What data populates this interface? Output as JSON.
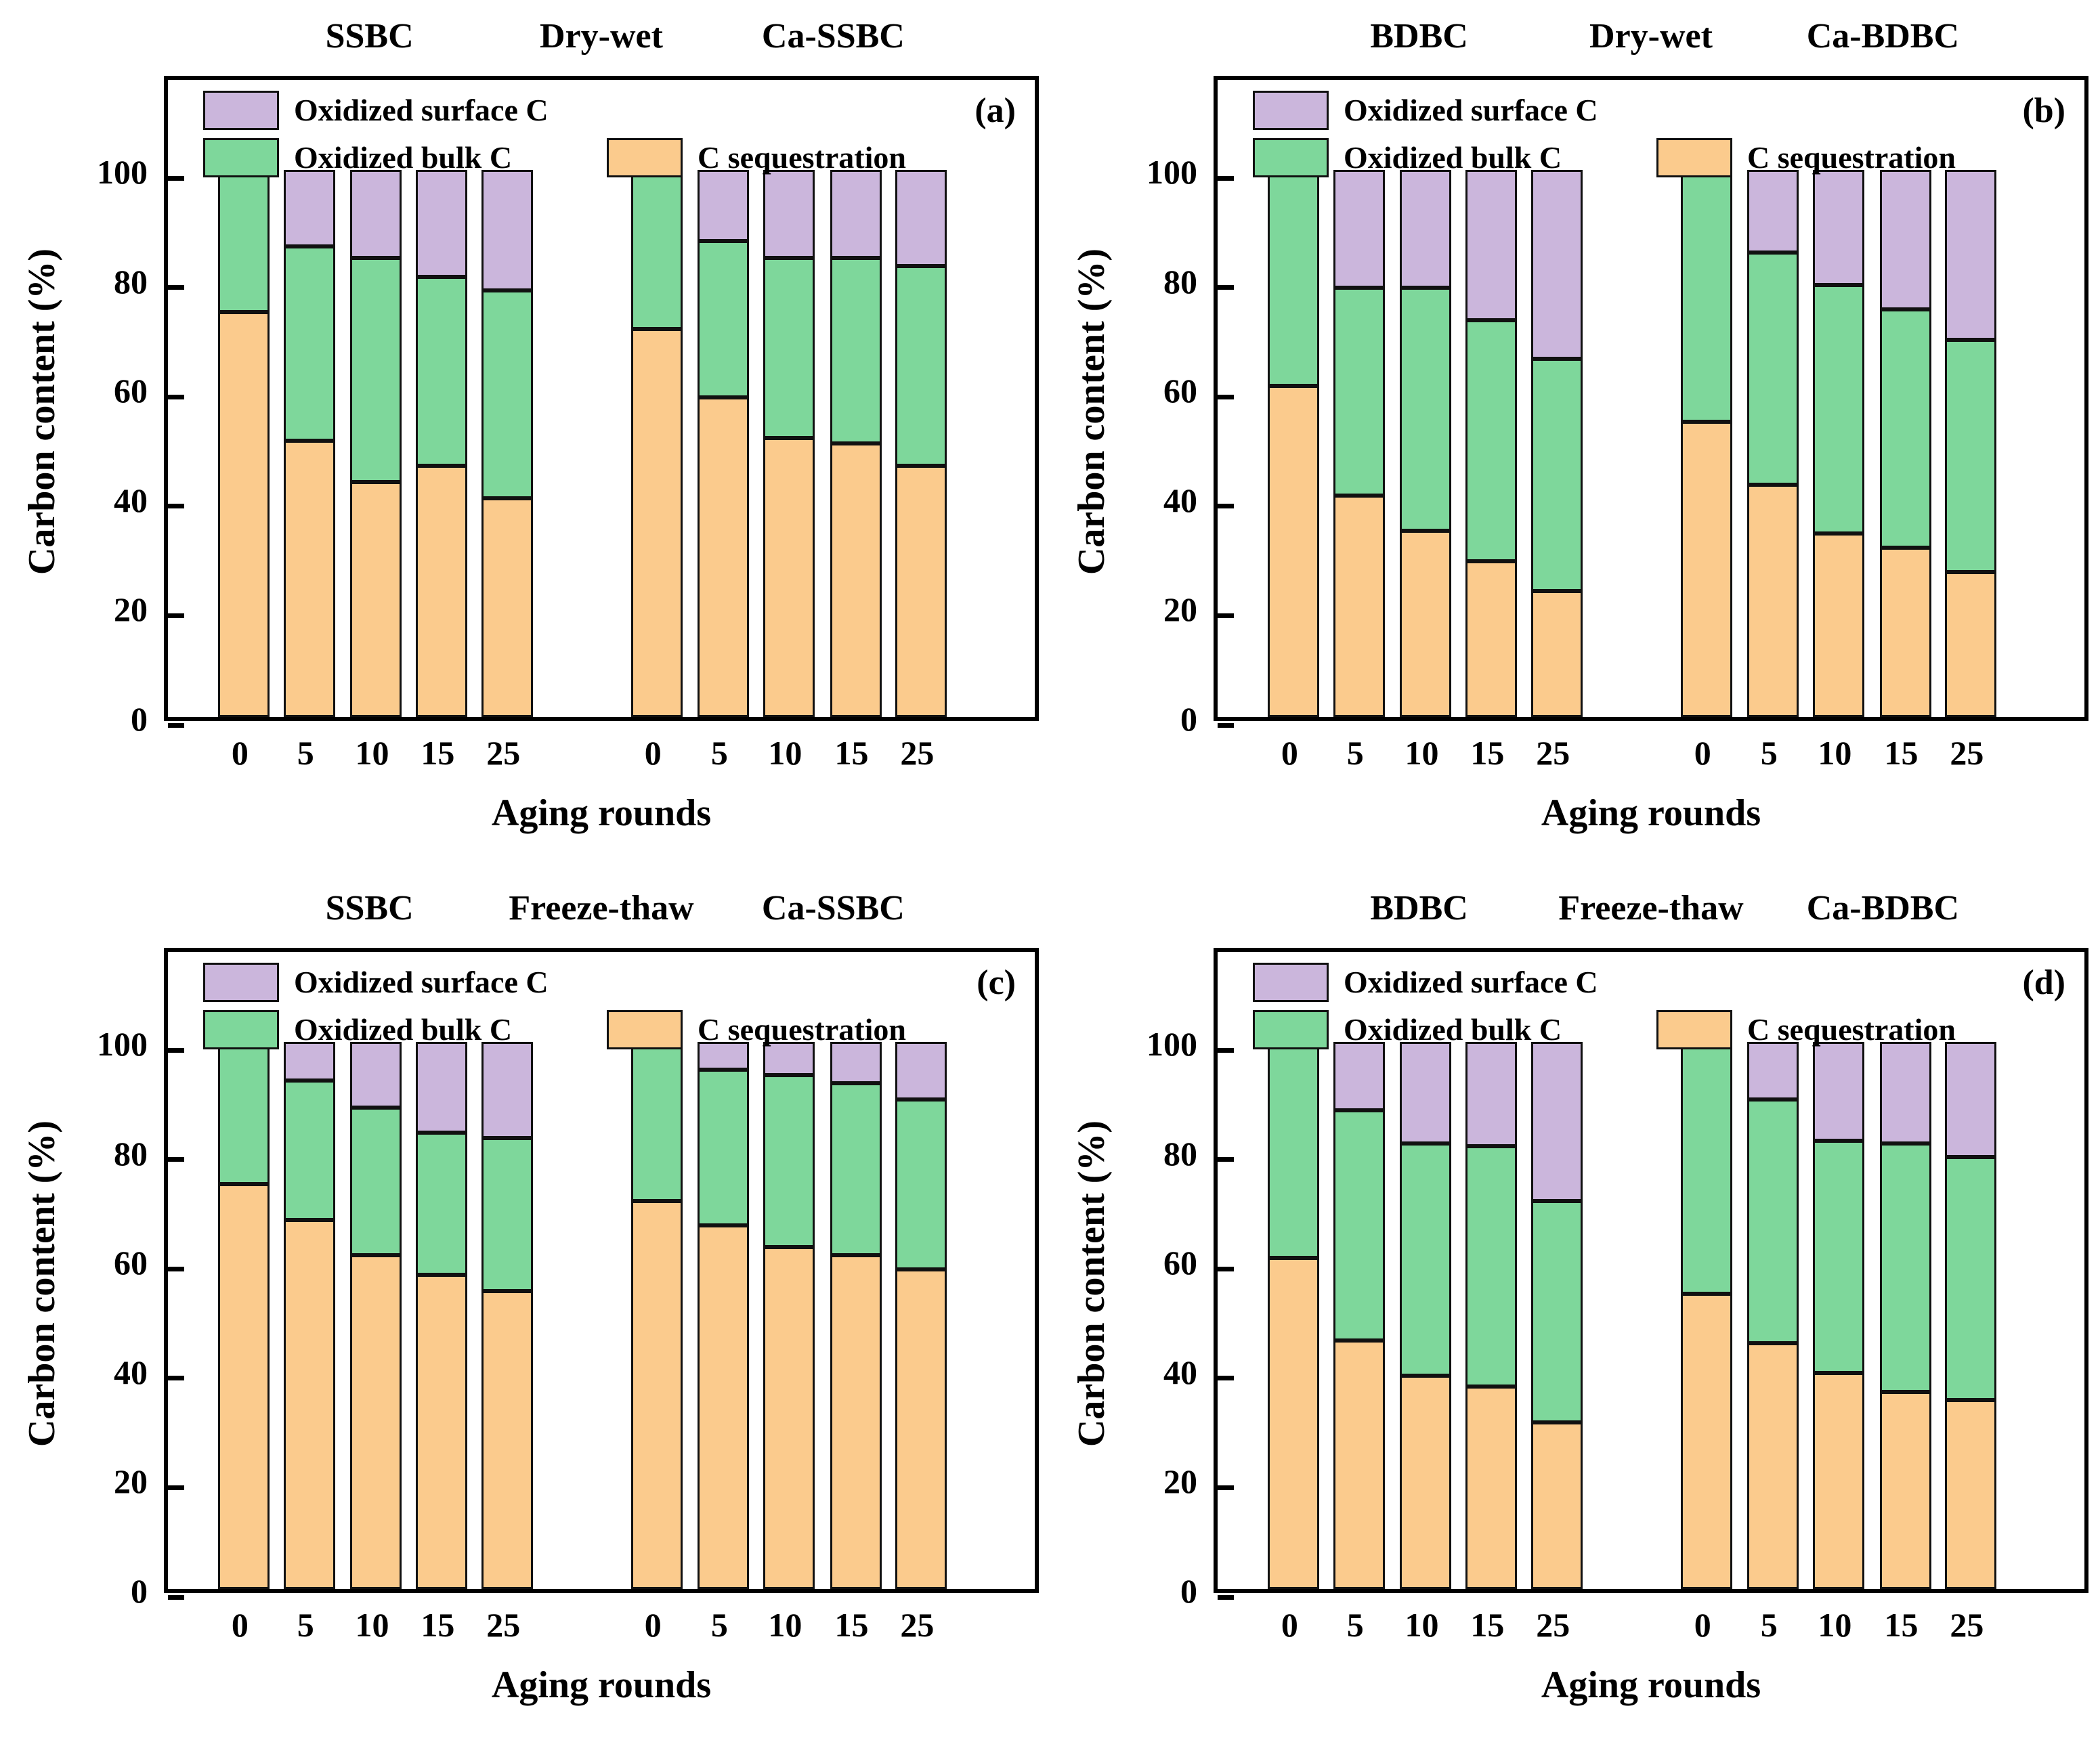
{
  "figure": {
    "ylabel": "Carbon content (%)",
    "xlabel": "Aging rounds",
    "y_tick_labels": [
      "0",
      "20",
      "40",
      "60",
      "80",
      "100"
    ],
    "x_tick_labels": [
      "0",
      "5",
      "10",
      "15",
      "25"
    ],
    "legend": {
      "oxidized_surface": "Oxidized surface C",
      "oxidized_bulk": "Oxidized bulk C",
      "c_sequestration": "C sequestration"
    },
    "colors": {
      "c_sequestration": "#FBCB8D",
      "oxidized_bulk": "#7ED79B",
      "oxidized_surface": "#CBB6DC",
      "bar_border": "#111111",
      "axis": "#000000"
    }
  },
  "chart_data": [
    {
      "type": "bar",
      "stacked": true,
      "panel_label": "(a)",
      "left_group": "SSBC",
      "aging_type": "Dry-wet",
      "right_group": "Ca-SSBC",
      "xlabel": "Aging rounds",
      "ylabel": "Carbon content (%)",
      "ylim": [
        0,
        100
      ],
      "grid": false,
      "legend_position": "top-left-inside",
      "categories": [
        "0",
        "5",
        "10",
        "15",
        "25"
      ],
      "series_order": [
        "C sequestration",
        "Oxidized bulk C",
        "Oxidized surface C"
      ],
      "groups": [
        {
          "name": "SSBC",
          "c_sequestration": [
            74,
            50.5,
            43,
            46,
            40
          ],
          "oxidized_bulk_c": [
            26,
            35.5,
            41,
            34.5,
            38
          ],
          "oxidized_surface_c": [
            0,
            14,
            16,
            19.5,
            22
          ]
        },
        {
          "name": "Ca-SSBC",
          "c_sequestration": [
            71,
            58.5,
            51,
            50,
            46
          ],
          "oxidized_bulk_c": [
            29,
            28.5,
            33,
            34,
            36.5
          ],
          "oxidized_surface_c": [
            0,
            13,
            16,
            16,
            17.5
          ]
        }
      ]
    },
    {
      "type": "bar",
      "stacked": true,
      "panel_label": "(b)",
      "left_group": "BDBC",
      "aging_type": "Dry-wet",
      "right_group": "Ca-BDBC",
      "xlabel": "Aging rounds",
      "ylabel": "Carbon content (%)",
      "ylim": [
        0,
        100
      ],
      "grid": false,
      "legend_position": "top-left-inside",
      "categories": [
        "0",
        "5",
        "10",
        "15",
        "25"
      ],
      "series_order": [
        "C sequestration",
        "Oxidized bulk C",
        "Oxidized surface C"
      ],
      "groups": [
        {
          "name": "BDBC",
          "c_sequestration": [
            60.5,
            40.5,
            34,
            28.5,
            23
          ],
          "oxidized_bulk_c": [
            39.5,
            38,
            44.5,
            44,
            42.5
          ],
          "oxidized_surface_c": [
            0,
            21.5,
            21.5,
            27.5,
            34.5
          ]
        },
        {
          "name": "Ca-BDBC",
          "c_sequestration": [
            54,
            42.5,
            33.5,
            31,
            26.5
          ],
          "oxidized_bulk_c": [
            46,
            42.5,
            45.5,
            43.5,
            42.5
          ],
          "oxidized_surface_c": [
            0,
            15,
            21,
            25.5,
            31
          ]
        }
      ]
    },
    {
      "type": "bar",
      "stacked": true,
      "panel_label": "(c)",
      "left_group": "SSBC",
      "aging_type": "Freeze-thaw",
      "right_group": "Ca-SSBC",
      "xlabel": "Aging rounds",
      "ylabel": "Carbon content (%)",
      "ylim": [
        0,
        100
      ],
      "grid": false,
      "legend_position": "top-left-inside",
      "categories": [
        "0",
        "5",
        "10",
        "15",
        "25"
      ],
      "series_order": [
        "C sequestration",
        "Oxidized bulk C",
        "Oxidized surface C"
      ],
      "groups": [
        {
          "name": "SSBC",
          "c_sequestration": [
            74,
            67.5,
            61,
            57.5,
            54.5
          ],
          "oxidized_bulk_c": [
            26,
            25.5,
            27,
            26,
            28
          ],
          "oxidized_surface_c": [
            0,
            7,
            12,
            16.5,
            17.5
          ]
        },
        {
          "name": "Ca-SSBC",
          "c_sequestration": [
            71,
            66.5,
            62.5,
            61,
            58.5
          ],
          "oxidized_bulk_c": [
            29,
            28.5,
            31.5,
            31.5,
            31
          ],
          "oxidized_surface_c": [
            0,
            5,
            6,
            7.5,
            10.5
          ]
        }
      ]
    },
    {
      "type": "bar",
      "stacked": true,
      "panel_label": "(d)",
      "left_group": "BDBC",
      "aging_type": "Freeze-thaw",
      "right_group": "Ca-BDBC",
      "xlabel": "Aging rounds",
      "ylabel": "Carbon content (%)",
      "ylim": [
        0,
        100
      ],
      "grid": false,
      "legend_position": "top-left-inside",
      "categories": [
        "0",
        "5",
        "10",
        "15",
        "25"
      ],
      "series_order": [
        "C sequestration",
        "Oxidized bulk C",
        "Oxidized surface C"
      ],
      "groups": [
        {
          "name": "BDBC",
          "c_sequestration": [
            60.5,
            45.5,
            39,
            37,
            30.5
          ],
          "oxidized_bulk_c": [
            39.5,
            42,
            42.5,
            44,
            40.5
          ],
          "oxidized_surface_c": [
            0,
            12.5,
            18.5,
            19,
            29
          ]
        },
        {
          "name": "Ca-BDBC",
          "c_sequestration": [
            54,
            45,
            39.5,
            36,
            34.5
          ],
          "oxidized_bulk_c": [
            46,
            44.5,
            42.5,
            45.5,
            44.5
          ],
          "oxidized_surface_c": [
            0,
            10.5,
            18,
            18.5,
            21
          ]
        }
      ]
    }
  ]
}
